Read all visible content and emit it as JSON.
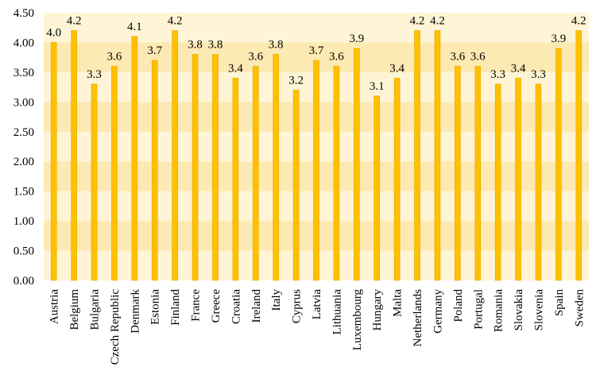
{
  "chart_data": {
    "type": "bar",
    "title": "",
    "xlabel": "",
    "ylabel": "",
    "ylim": [
      0,
      4.5
    ],
    "yticks": [
      "0.00",
      "0.50",
      "1.00",
      "1.50",
      "2.00",
      "2.50",
      "3.00",
      "3.50",
      "4.00",
      "4.50"
    ],
    "categories": [
      "Austria",
      "Belgium",
      "Bulgaria",
      "Czech Republic",
      "Denmark",
      "Estonia",
      "Finland",
      "France",
      "Greece",
      "Croatia",
      "Ireland",
      "Italy",
      "Cyprus",
      "Latvia",
      "Lithuania",
      "Luxembourg",
      "Hungary",
      "Malta",
      "Netherlands",
      "Germany",
      "Poland",
      "Portugal",
      "Romania",
      "Slovakia",
      "Slovenia",
      "Spain",
      "Sweden"
    ],
    "values": [
      4.0,
      4.2,
      3.3,
      3.6,
      4.1,
      3.7,
      4.2,
      3.8,
      3.8,
      3.4,
      3.6,
      3.8,
      3.2,
      3.7,
      3.6,
      3.9,
      3.1,
      3.4,
      4.2,
      4.2,
      3.6,
      3.6,
      3.3,
      3.4,
      3.3,
      3.9,
      4.2
    ],
    "data_labels": [
      "4.0",
      "4.2",
      "3.3",
      "3.6",
      "4.1",
      "3.7",
      "4.2",
      "3.8",
      "3.8",
      "3.4",
      "3.6",
      "3.8",
      "3.2",
      "3.7",
      "3.6",
      "3.9",
      "3.1",
      "3.4",
      "4.2",
      "4.2",
      "3.6",
      "3.6",
      "3.3",
      "3.4",
      "3.3",
      "3.9",
      "4.2"
    ],
    "grid": false,
    "legend": "none",
    "colors": {
      "bar": "#FFC000",
      "bar_edge": "#E6A800",
      "band_light": "#FFF5D6",
      "band_dark": "#FDE9B2"
    }
  }
}
